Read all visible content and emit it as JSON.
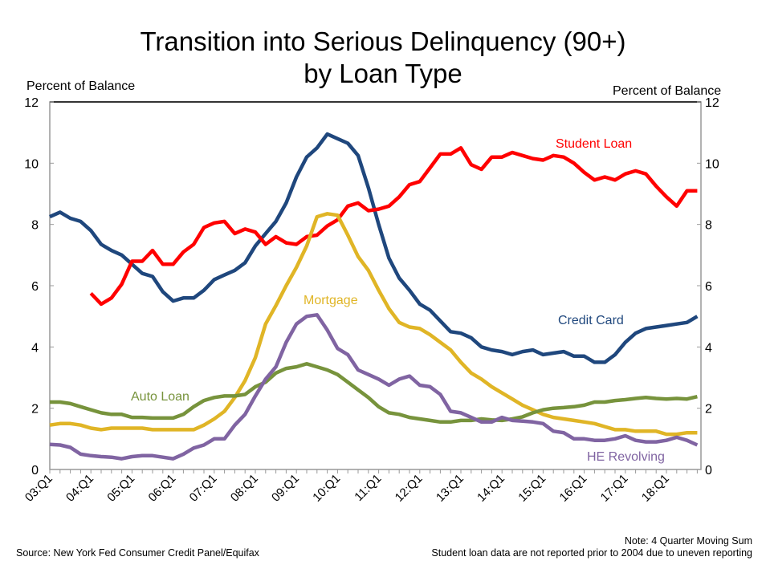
{
  "chart_data": {
    "type": "line",
    "title_line1": "Transition into Serious Delinquency (90+)",
    "title_line2": "by Loan Type",
    "ylabel_left": "Percent of Balance",
    "ylabel_right": "Percent of Balance",
    "ylim": [
      0,
      12
    ],
    "yticks": [
      0,
      2,
      4,
      6,
      8,
      10,
      12
    ],
    "xtick_labels": [
      "03:Q1",
      "04:Q1",
      "05:Q1",
      "06:Q1",
      "07:Q1",
      "08:Q1",
      "09:Q1",
      "10:Q1",
      "11:Q1",
      "12:Q1",
      "13:Q1",
      "14:Q1",
      "15:Q1",
      "16:Q1",
      "17:Q1",
      "18:Q1"
    ],
    "x_range": [
      "03:Q1",
      "18:Q4"
    ],
    "grid": false,
    "legend": "inline labels",
    "series": [
      {
        "name": "Credit Card",
        "color": "#1F477D",
        "values": [
          8.25,
          8.4,
          8.2,
          8.1,
          7.8,
          7.35,
          7.15,
          7.0,
          6.7,
          6.4,
          6.3,
          5.8,
          5.5,
          5.6,
          5.6,
          5.85,
          6.2,
          6.35,
          6.5,
          6.75,
          7.3,
          7.7,
          8.1,
          8.7,
          9.55,
          10.2,
          10.5,
          10.95,
          10.8,
          10.65,
          10.25,
          9.2,
          8.0,
          6.9,
          6.25,
          5.85,
          5.4,
          5.2,
          4.85,
          4.5,
          4.45,
          4.3,
          4.0,
          3.9,
          3.85,
          3.75,
          3.85,
          3.9,
          3.75,
          3.8,
          3.85,
          3.7,
          3.7,
          3.5,
          3.5,
          3.75,
          4.15,
          4.45,
          4.6,
          4.65,
          4.7,
          4.75,
          4.8,
          5.0
        ]
      },
      {
        "name": "Student Loan",
        "color": "#FF0000",
        "values": [
          null,
          null,
          null,
          null,
          5.75,
          5.4,
          5.6,
          6.05,
          6.8,
          6.8,
          7.15,
          6.7,
          6.7,
          7.1,
          7.35,
          7.9,
          8.05,
          8.1,
          7.7,
          7.85,
          7.75,
          7.35,
          7.6,
          7.4,
          7.35,
          7.6,
          7.65,
          7.95,
          8.15,
          8.6,
          8.7,
          8.45,
          8.5,
          8.6,
          8.9,
          9.3,
          9.4,
          9.85,
          10.3,
          10.3,
          10.5,
          9.95,
          9.8,
          10.2,
          10.2,
          10.35,
          10.25,
          10.15,
          10.1,
          10.25,
          10.2,
          10.0,
          9.7,
          9.45,
          9.55,
          9.45,
          9.65,
          9.75,
          9.65,
          9.25,
          8.9,
          8.6,
          9.1,
          9.1
        ]
      },
      {
        "name": "Mortgage",
        "color": "#E0B526",
        "values": [
          1.45,
          1.5,
          1.5,
          1.45,
          1.35,
          1.3,
          1.35,
          1.35,
          1.35,
          1.35,
          1.3,
          1.3,
          1.3,
          1.3,
          1.3,
          1.45,
          1.65,
          1.9,
          2.35,
          2.9,
          3.65,
          4.75,
          5.35,
          6.0,
          6.6,
          7.3,
          8.25,
          8.35,
          8.3,
          7.65,
          6.95,
          6.5,
          5.85,
          5.25,
          4.8,
          4.65,
          4.6,
          4.4,
          4.15,
          3.9,
          3.5,
          3.15,
          2.95,
          2.7,
          2.5,
          2.3,
          2.1,
          1.95,
          1.8,
          1.7,
          1.65,
          1.6,
          1.55,
          1.5,
          1.4,
          1.3,
          1.3,
          1.25,
          1.25,
          1.25,
          1.15,
          1.15,
          1.2,
          1.2
        ]
      },
      {
        "name": "Auto Loan",
        "color": "#77933C",
        "values": [
          2.2,
          2.2,
          2.15,
          2.05,
          1.95,
          1.85,
          1.8,
          1.8,
          1.7,
          1.7,
          1.68,
          1.68,
          1.68,
          1.8,
          2.05,
          2.25,
          2.35,
          2.4,
          2.4,
          2.45,
          2.7,
          2.85,
          3.15,
          3.3,
          3.35,
          3.45,
          3.35,
          3.25,
          3.1,
          2.85,
          2.6,
          2.35,
          2.05,
          1.85,
          1.8,
          1.7,
          1.65,
          1.6,
          1.55,
          1.55,
          1.6,
          1.6,
          1.65,
          1.62,
          1.6,
          1.65,
          1.72,
          1.85,
          1.95,
          2.0,
          2.02,
          2.05,
          2.1,
          2.2,
          2.2,
          2.25,
          2.28,
          2.32,
          2.35,
          2.32,
          2.3,
          2.32,
          2.3,
          2.38
        ]
      },
      {
        "name": "HE Revolving",
        "color": "#8064A2",
        "values": [
          0.82,
          0.8,
          0.72,
          0.5,
          0.45,
          0.42,
          0.4,
          0.35,
          0.42,
          0.45,
          0.45,
          0.4,
          0.35,
          0.5,
          0.7,
          0.8,
          1.0,
          1.0,
          1.45,
          1.8,
          2.4,
          2.95,
          3.35,
          4.15,
          4.75,
          5.0,
          5.05,
          4.55,
          3.95,
          3.75,
          3.25,
          3.1,
          2.95,
          2.75,
          2.95,
          3.05,
          2.75,
          2.7,
          2.45,
          1.9,
          1.85,
          1.7,
          1.55,
          1.55,
          1.7,
          1.6,
          1.58,
          1.55,
          1.5,
          1.25,
          1.2,
          1.0,
          1.0,
          0.95,
          0.95,
          1.0,
          1.1,
          0.95,
          0.9,
          0.9,
          0.95,
          1.05,
          0.95,
          0.8
        ]
      }
    ]
  },
  "footer": {
    "source": "Source: New York Fed Consumer Credit Panel/Equifax",
    "note1": "Note: 4 Quarter Moving Sum",
    "note2": "Student loan data are not reported prior to 2004 due to uneven reporting"
  }
}
